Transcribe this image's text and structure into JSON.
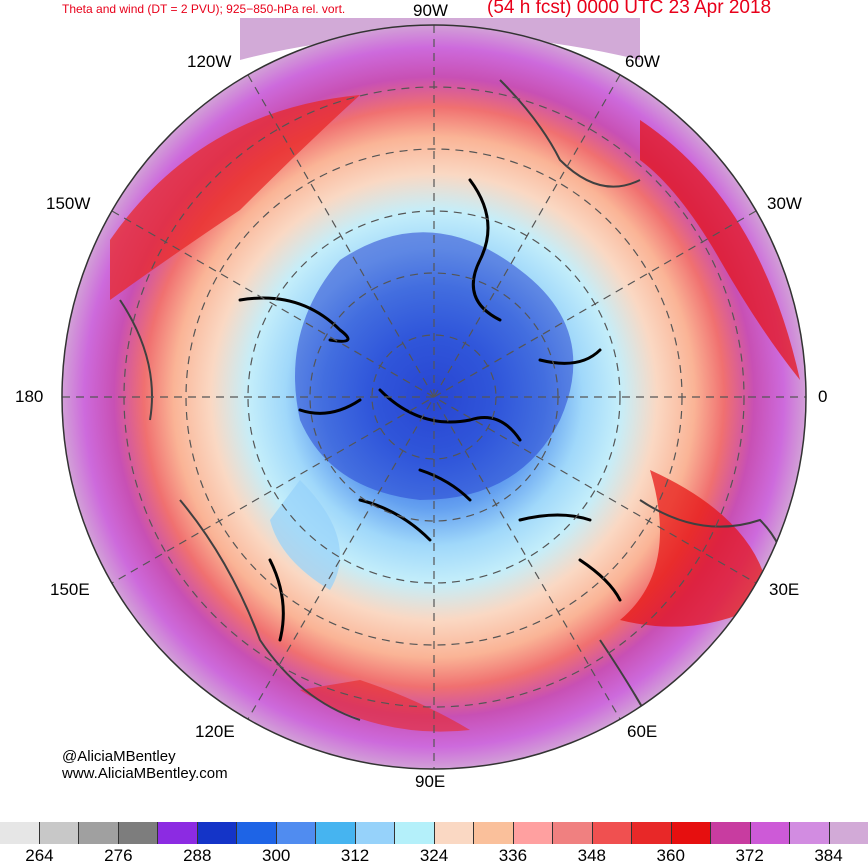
{
  "title": {
    "left": "Theta and wind (DT = 2 PVU); 925−850-hPa rel. vort.",
    "right": "(54 h fcst) 0000 UTC 23 Apr 2018"
  },
  "longitude_labels": {
    "top": "90W",
    "top_left": "120W",
    "top_right": "60W",
    "upper_left": "150W",
    "upper_right": "30W",
    "left": "180",
    "right": "0",
    "lower_left": "150E",
    "lower_right": "30E",
    "bottom_left": "120E",
    "bottom_right": "60E",
    "bottom": "90E"
  },
  "credits": {
    "handle": "@AliciaMBentley",
    "website": "www.AliciaMBentley.com"
  },
  "colorbar": {
    "colors": [
      "#e6e6e6",
      "#c8c8c8",
      "#a0a0a0",
      "#7d7d7d",
      "#8c2be2",
      "#1434c8",
      "#1e64e6",
      "#508cf0",
      "#46b4f0",
      "#96d2fa",
      "#b4f0fa",
      "#fad8c3",
      "#fac09b",
      "#ffa0a0",
      "#f08080",
      "#f05050",
      "#e82828",
      "#e60f0f",
      "#c83ca0",
      "#cd5ad7",
      "#d28ce1",
      "#d2aad7"
    ],
    "tick_labels": [
      "264",
      "276",
      "288",
      "300",
      "312",
      "324",
      "336",
      "348",
      "360",
      "372",
      "384"
    ]
  }
}
